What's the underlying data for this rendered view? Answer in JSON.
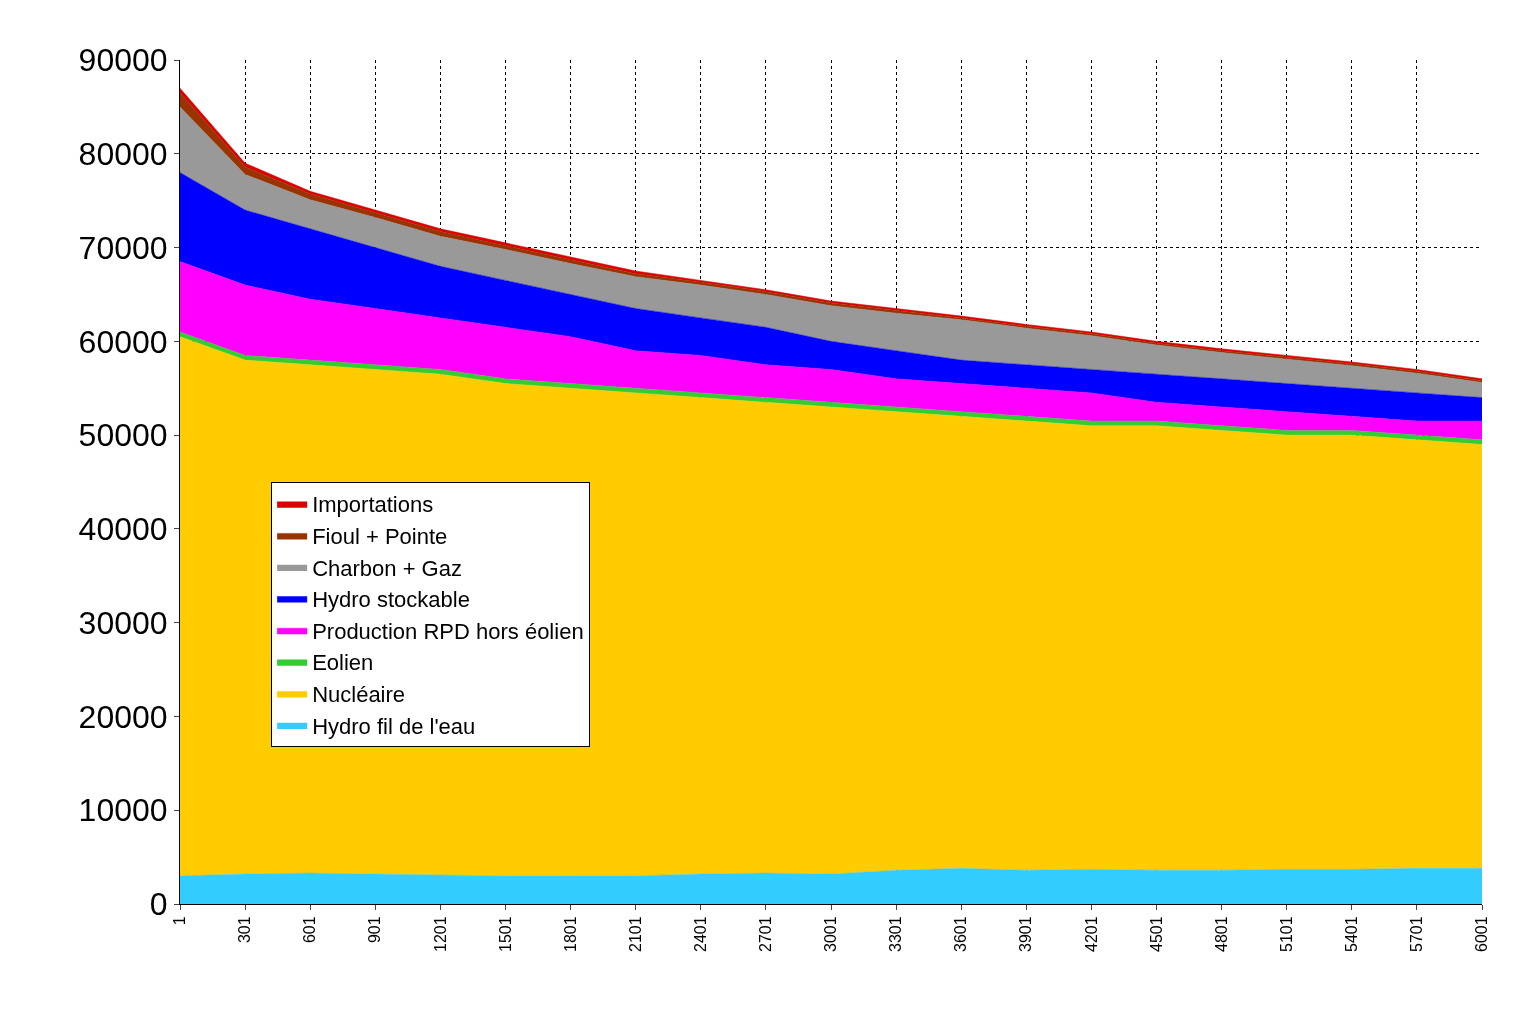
{
  "chart_data": {
    "type": "area",
    "stacked": true,
    "x": [
      1,
      301,
      601,
      901,
      1201,
      1501,
      1801,
      2101,
      2401,
      2701,
      3001,
      3301,
      3601,
      3901,
      4201,
      4501,
      4801,
      5101,
      5401,
      5701,
      6001
    ],
    "series": [
      {
        "name": "Hydro fil de l'eau",
        "color": "#33ccff",
        "values": [
          3000,
          3200,
          3300,
          3200,
          3100,
          3000,
          3000,
          3000,
          3200,
          3300,
          3200,
          3600,
          3800,
          3600,
          3700,
          3600,
          3600,
          3700,
          3700,
          3800,
          3800
        ]
      },
      {
        "name": "Nucléaire",
        "color": "#ffcc00",
        "values": [
          57500,
          54800,
          54200,
          53800,
          53400,
          52500,
          52000,
          51500,
          50800,
          50200,
          49800,
          48900,
          48200,
          47900,
          47300,
          47400,
          46900,
          46300,
          46300,
          45700,
          45200
        ]
      },
      {
        "name": "Eolien",
        "color": "#33cc33",
        "values": [
          500,
          500,
          500,
          500,
          500,
          500,
          500,
          500,
          500,
          500,
          500,
          500,
          500,
          500,
          500,
          500,
          500,
          500,
          500,
          500,
          500
        ]
      },
      {
        "name": "Production RPD hors éolien",
        "color": "#ff00ff",
        "values": [
          7500,
          7500,
          6500,
          6000,
          5500,
          5500,
          5000,
          4000,
          4000,
          3500,
          3500,
          3000,
          3000,
          3000,
          3000,
          2000,
          2000,
          2000,
          1500,
          1500,
          2000
        ]
      },
      {
        "name": "Hydro stockable",
        "color": "#0000ff",
        "values": [
          9500,
          8000,
          7500,
          6500,
          5500,
          5000,
          4500,
          4500,
          4000,
          4000,
          3000,
          3000,
          2500,
          2500,
          2500,
          3000,
          3000,
          3000,
          3000,
          3000,
          2500
        ]
      },
      {
        "name": "Charbon + Gaz",
        "color": "#999999",
        "values": [
          7000,
          3800,
          3100,
          3200,
          3200,
          3300,
          3300,
          3400,
          3500,
          3500,
          3800,
          4000,
          4300,
          3900,
          3600,
          3100,
          2800,
          2600,
          2400,
          2100,
          1600
        ]
      },
      {
        "name": "Fioul + Pointe",
        "color": "#993300",
        "values": [
          1500,
          800,
          600,
          500,
          500,
          400,
          400,
          300,
          300,
          300,
          300,
          300,
          200,
          200,
          200,
          200,
          200,
          200,
          200,
          200,
          200
        ]
      },
      {
        "name": "Importations",
        "color": "#dd0000",
        "values": [
          500,
          400,
          300,
          300,
          300,
          300,
          300,
          300,
          200,
          200,
          200,
          200,
          200,
          200,
          200,
          200,
          200,
          200,
          200,
          200,
          200
        ]
      }
    ],
    "xlim": [
      1,
      6001
    ],
    "ylim": [
      0,
      90000
    ],
    "xticks": [
      1,
      301,
      601,
      901,
      1201,
      1501,
      1801,
      2101,
      2401,
      2701,
      3001,
      3301,
      3601,
      3901,
      4201,
      4501,
      4801,
      5101,
      5401,
      5701,
      6001
    ],
    "yticks": [
      0,
      10000,
      20000,
      30000,
      40000,
      50000,
      60000,
      70000,
      80000,
      90000
    ],
    "grid": true,
    "legend": "left"
  }
}
